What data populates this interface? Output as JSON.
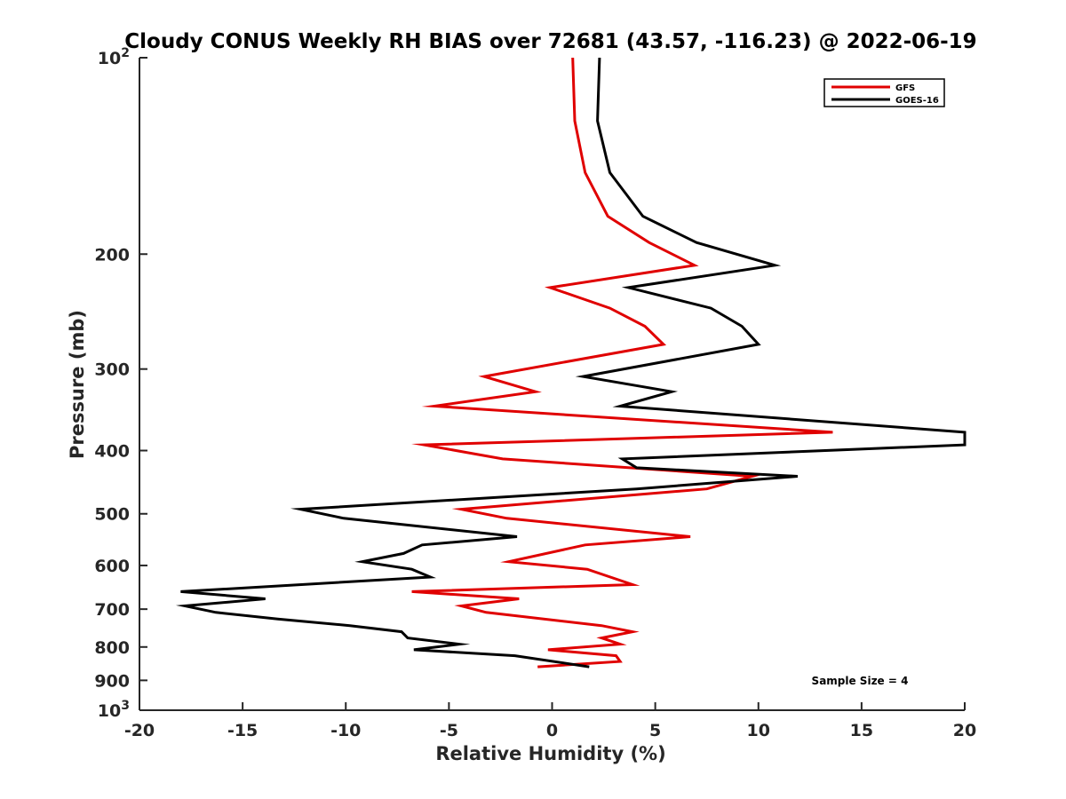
{
  "chart_data": {
    "type": "line",
    "title": "Cloudy CONUS Weekly RH BIAS over 72681 (43.57, -116.23) @ 2022-06-19",
    "xlabel": "Relative Humidity (%)",
    "ylabel": "Pressure (mb)",
    "xlim": [
      -20,
      20
    ],
    "ylim": [
      100,
      1000
    ],
    "y_scale": "log",
    "y_reversed": true,
    "x_ticks": [
      "-20",
      "-15",
      "-10",
      "-5",
      "0",
      "5",
      "10",
      "15",
      "20"
    ],
    "y_ticks": [
      {
        "value": 100,
        "label": "10",
        "sup": "2"
      },
      {
        "value": 200,
        "label": "200",
        "sup": ""
      },
      {
        "value": 300,
        "label": "300",
        "sup": ""
      },
      {
        "value": 400,
        "label": "400",
        "sup": ""
      },
      {
        "value": 500,
        "label": "500",
        "sup": ""
      },
      {
        "value": 600,
        "label": "600",
        "sup": ""
      },
      {
        "value": 700,
        "label": "700",
        "sup": ""
      },
      {
        "value": 800,
        "label": "800",
        "sup": ""
      },
      {
        "value": 900,
        "label": "900",
        "sup": ""
      },
      {
        "value": 1000,
        "label": "10",
        "sup": "3"
      }
    ],
    "grid": false,
    "legend_position": "top-right",
    "annotation": "Sample Size = 4",
    "series": [
      {
        "name": "GFS",
        "color": "#e00000",
        "points": [
          [
            1.0,
            100
          ],
          [
            1.1,
            125
          ],
          [
            1.6,
            150
          ],
          [
            2.7,
            175
          ],
          [
            4.7,
            192
          ],
          [
            6.9,
            208
          ],
          [
            -0.1,
            225
          ],
          [
            2.8,
            242
          ],
          [
            4.5,
            258
          ],
          [
            5.4,
            275
          ],
          [
            -3.3,
            308
          ],
          [
            -0.8,
            325
          ],
          [
            -5.7,
            342
          ],
          [
            13.6,
            375
          ],
          [
            -6.2,
            392
          ],
          [
            -2.4,
            412
          ],
          [
            9.7,
            438
          ],
          [
            7.5,
            458
          ],
          [
            -4.4,
            492
          ],
          [
            -2.2,
            508
          ],
          [
            6.7,
            542
          ],
          [
            1.6,
            558
          ],
          [
            -2.1,
            592
          ],
          [
            1.7,
            608
          ],
          [
            3.9,
            642
          ],
          [
            -6.8,
            658
          ],
          [
            -1.6,
            675
          ],
          [
            -4.4,
            692
          ],
          [
            -3.2,
            708
          ],
          [
            2.4,
            742
          ],
          [
            3.9,
            758
          ],
          [
            2.4,
            775
          ],
          [
            3.3,
            792
          ],
          [
            -0.2,
            808
          ],
          [
            3.1,
            825
          ],
          [
            3.3,
            842
          ],
          [
            -0.7,
            858
          ]
        ]
      },
      {
        "name": "GOES-16",
        "color": "#000000",
        "points": [
          [
            2.3,
            100
          ],
          [
            2.2,
            125
          ],
          [
            2.8,
            150
          ],
          [
            4.4,
            175
          ],
          [
            7.0,
            192
          ],
          [
            10.8,
            208
          ],
          [
            3.7,
            225
          ],
          [
            7.7,
            242
          ],
          [
            9.2,
            258
          ],
          [
            10.0,
            275
          ],
          [
            1.5,
            308
          ],
          [
            5.8,
            325
          ],
          [
            3.3,
            342
          ],
          [
            20.0,
            375
          ],
          [
            20.0,
            392
          ],
          [
            3.4,
            412
          ],
          [
            4.1,
            425
          ],
          [
            11.9,
            438
          ],
          [
            4.1,
            458
          ],
          [
            -12.2,
            492
          ],
          [
            -10.1,
            508
          ],
          [
            -1.7,
            542
          ],
          [
            -6.3,
            558
          ],
          [
            -7.2,
            575
          ],
          [
            -9.2,
            592
          ],
          [
            -6.8,
            608
          ],
          [
            -5.9,
            625
          ],
          [
            -18.0,
            658
          ],
          [
            -13.9,
            675
          ],
          [
            -17.8,
            692
          ],
          [
            -16.3,
            708
          ],
          [
            -13.3,
            725
          ],
          [
            -9.8,
            742
          ],
          [
            -7.3,
            758
          ],
          [
            -7.0,
            775
          ],
          [
            -4.5,
            792
          ],
          [
            -6.7,
            808
          ],
          [
            -1.8,
            825
          ],
          [
            1.8,
            858
          ]
        ]
      }
    ]
  }
}
